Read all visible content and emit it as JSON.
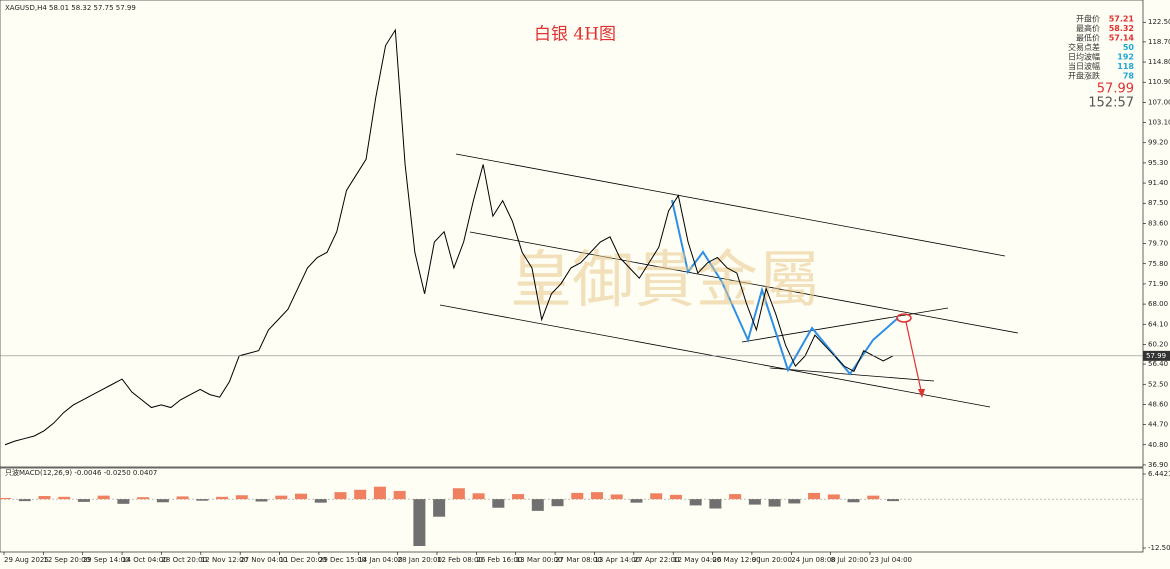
{
  "chart_data": [
    {
      "type": "line",
      "symbol_info": "XAGUSD,H4 58.01 58.32 57.75 57.99",
      "title": "白银 4H图",
      "watermark": "皇御貴金屬",
      "color": "#000000",
      "xlabels": [
        "29 Aug 2025",
        "12 Sep 20:00",
        "29 Sep 14:00",
        "14 Oct 04:00",
        "28 Oct 20:00",
        "12 Nov 12:00",
        "27 Nov 04:00",
        "11 Dec 20:00",
        "29 Dec 15:00",
        "14 Jan 04:00",
        "28 Jan 20:00",
        "12 Feb 08:00",
        "26 Feb 16:00",
        "13 Mar 00:00",
        "27 Mar 08:00",
        "13 Apr 14:00",
        "27 Apr 22:00",
        "12 May 04:00",
        "26 May 12:00",
        "9 Jun 20:00",
        "24 Jun 08:00",
        "8 Jul 20:00",
        "23 Jul 04:00"
      ],
      "values": [
        40.8,
        41.5,
        42,
        42.5,
        43.5,
        45,
        47,
        48.5,
        49.5,
        50.5,
        51.5,
        52.5,
        53.5,
        51,
        49.5,
        48,
        48.5,
        48,
        49.5,
        50.5,
        51.5,
        50.5,
        50,
        53,
        58,
        58.5,
        59,
        63,
        65,
        67,
        71,
        75,
        77,
        78,
        82,
        90,
        93,
        96,
        108,
        118,
        121,
        95,
        78,
        70,
        80,
        82,
        75,
        80,
        88,
        95,
        85,
        88,
        84,
        78,
        75,
        65,
        70,
        72,
        75,
        76,
        78,
        80,
        81,
        77,
        75,
        73,
        76,
        79,
        86,
        89,
        80,
        74,
        76,
        77,
        75,
        74,
        68,
        63,
        71,
        66,
        60,
        56,
        58,
        62,
        60,
        58,
        56,
        55,
        59,
        58,
        57,
        58
      ],
      "ylim": [
        36.5,
        126.8
      ],
      "yticks": [
        {
          "value": 122.5,
          "label": "122.50"
        },
        {
          "value": 118.7,
          "label": "118.70"
        },
        {
          "value": 114.8,
          "label": "114.80"
        },
        {
          "value": 110.9,
          "label": "110.90"
        },
        {
          "value": 107,
          "label": "107.00"
        },
        {
          "value": 103.1,
          "label": "103.10"
        },
        {
          "value": 99.2,
          "label": "99.20"
        },
        {
          "value": 95.3,
          "label": "95.30"
        },
        {
          "value": 91.4,
          "label": "91.40"
        },
        {
          "value": 87.5,
          "label": "87.50"
        },
        {
          "value": 83.6,
          "label": "83.60"
        },
        {
          "value": 79.7,
          "label": "79.70"
        },
        {
          "value": 75.8,
          "label": "75.80"
        },
        {
          "value": 71.9,
          "label": "71.90"
        },
        {
          "value": 68,
          "label": "68.00"
        },
        {
          "value": 64.1,
          "label": "64.10"
        },
        {
          "value": 60.2,
          "label": "60.20"
        },
        {
          "value": 56.4,
          "label": "56.40"
        },
        {
          "value": 52.5,
          "label": "52.50"
        },
        {
          "value": 48.6,
          "label": "48.60"
        },
        {
          "value": 44.7,
          "label": "44.70"
        },
        {
          "value": 40.8,
          "label": "40.80"
        },
        {
          "value": 36.9,
          "label": "36.90"
        }
      ],
      "last_price": 57.99,
      "last_label": "57.99",
      "timer": "152:57",
      "panel": [
        [
          "开盘价",
          "57.21"
        ],
        [
          "最高价",
          "58.32"
        ],
        [
          "最低价",
          "57.14"
        ],
        [
          "交易点差",
          "50"
        ],
        [
          "日均波幅",
          "192"
        ],
        [
          "当日波幅",
          "118"
        ],
        [
          "开盘涨跌",
          "78"
        ]
      ]
    },
    {
      "type": "bar",
      "title": "只波MACD(12,26,9) -0.0046 -0.0250 0.0407",
      "values": [
        0.3,
        -0.5,
        0.8,
        0.6,
        -0.7,
        0.9,
        -1.2,
        0.5,
        -0.8,
        0.7,
        -0.4,
        0.6,
        1.0,
        -0.6,
        0.9,
        1.4,
        -0.9,
        1.8,
        2.4,
        3.2,
        2.1,
        -12.0,
        -4.5,
        2.8,
        1.5,
        -2.2,
        1.3,
        -3.0,
        -1.8,
        1.6,
        1.8,
        1.2,
        -0.9,
        1.5,
        1.1,
        -1.6,
        -2.4,
        1.3,
        -1.4,
        -1.9,
        -1.1,
        1.6,
        1.2,
        -0.8,
        0.9,
        -0.5
      ],
      "ylim": [
        -12.5098,
        6.4421
      ],
      "yticks": [
        6.4421,
        -12.5098
      ]
    }
  ]
}
